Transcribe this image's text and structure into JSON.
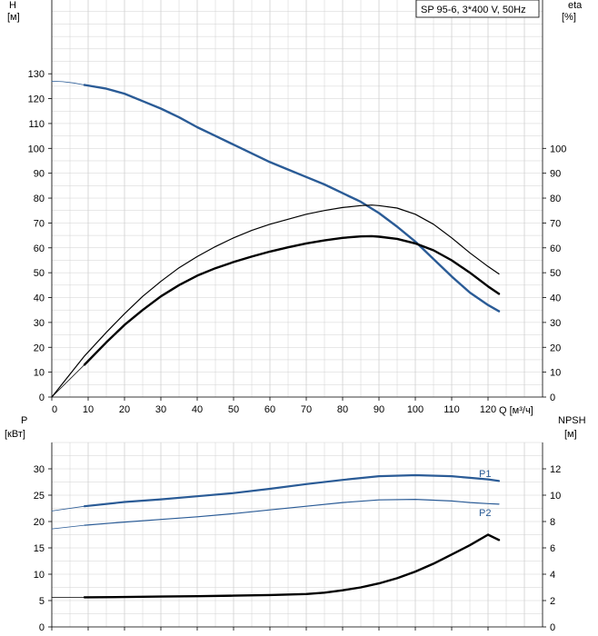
{
  "legend_box": "SP 95-6, 3*400 V, 50Hz",
  "chart_data": [
    {
      "type": "line",
      "name": "head-efficiency",
      "y_left_label": [
        "H",
        "[м]"
      ],
      "y_right_label": [
        "eta",
        "[%]"
      ],
      "x_label": "Q [м³/ч]",
      "x_ticks": [
        0,
        10,
        20,
        30,
        40,
        50,
        60,
        70,
        80,
        90,
        100,
        110,
        120
      ],
      "y_left_ticks": [
        0,
        10,
        20,
        30,
        40,
        50,
        60,
        70,
        80,
        90,
        100,
        110,
        120,
        130
      ],
      "y_right_ticks": [
        0,
        10,
        20,
        30,
        40,
        50,
        60,
        70,
        80,
        90,
        100
      ],
      "xlim": [
        0,
        130
      ],
      "ylim": [
        0,
        140
      ],
      "grid": true,
      "series": [
        {
          "name": "H",
          "color": "#2a5b96",
          "width": 2.4,
          "x": [
            9,
            15,
            20,
            25,
            30,
            35,
            40,
            45,
            50,
            55,
            60,
            65,
            70,
            75,
            80,
            85,
            90,
            95,
            100,
            105,
            110,
            115,
            120,
            123
          ],
          "y": [
            125.5,
            124,
            122,
            119,
            116,
            112.5,
            108.5,
            105,
            101.5,
            98,
            94.5,
            91.5,
            88.5,
            85.5,
            82,
            78.5,
            74,
            68.5,
            62.5,
            55.5,
            48.5,
            42,
            37,
            34.5
          ]
        },
        {
          "name": "H-extension",
          "color": "#2a5b96",
          "width": 0.8,
          "x": [
            0,
            3,
            6,
            9
          ],
          "y": [
            127,
            126.8,
            126.3,
            125.5
          ]
        },
        {
          "name": "eta",
          "color": "#000000",
          "width": 1.2,
          "x": [
            0,
            9,
            15,
            20,
            25,
            30,
            35,
            40,
            45,
            50,
            55,
            60,
            65,
            70,
            75,
            80,
            85,
            88,
            90,
            95,
            100,
            105,
            110,
            115,
            120,
            123
          ],
          "y": [
            0,
            16.5,
            26,
            33.5,
            40.5,
            46.5,
            52,
            56.5,
            60.5,
            64,
            67,
            69.5,
            71.5,
            73.5,
            75,
            76.2,
            77,
            77.2,
            77,
            76,
            73.5,
            69.5,
            64,
            58,
            52.5,
            49.5
          ]
        },
        {
          "name": "eta-unit",
          "color": "#000000",
          "width": 2.4,
          "x": [
            9,
            15,
            20,
            25,
            30,
            35,
            40,
            45,
            50,
            55,
            60,
            65,
            70,
            75,
            80,
            85,
            88,
            90,
            95,
            100,
            105,
            110,
            115,
            120,
            123
          ],
          "y": [
            13,
            22,
            29,
            35,
            40.5,
            45,
            48.8,
            51.8,
            54.3,
            56.5,
            58.5,
            60.2,
            61.8,
            63,
            64,
            64.6,
            64.7,
            64.5,
            63.6,
            61.8,
            59,
            55,
            50,
            44.5,
            41.5
          ]
        },
        {
          "name": "eta-extension",
          "color": "#000000",
          "width": 0.8,
          "x": [
            0,
            9
          ],
          "y": [
            0,
            13
          ]
        }
      ]
    },
    {
      "type": "line",
      "name": "power-npsh",
      "y_left_label": [
        "P",
        "[кВт]"
      ],
      "y_right_label": [
        "NPSH",
        "[м]"
      ],
      "y_left_ticks": [
        0,
        5,
        10,
        15,
        20,
        25,
        30
      ],
      "y_right_ticks": [
        0,
        2,
        4,
        6,
        8,
        10,
        12
      ],
      "xlim": [
        0,
        130
      ],
      "ylim": [
        0,
        35
      ],
      "grid": true,
      "annotations": [
        "P1",
        "P2"
      ],
      "series": [
        {
          "name": "P1",
          "color": "#2a5b96",
          "width": 2.2,
          "x": [
            9,
            20,
            30,
            40,
            50,
            60,
            70,
            80,
            90,
            100,
            110,
            115,
            120,
            123
          ],
          "y": [
            22.9,
            23.7,
            24.2,
            24.8,
            25.4,
            26.2,
            27.1,
            27.9,
            28.6,
            28.8,
            28.6,
            28.3,
            28,
            27.7
          ]
        },
        {
          "name": "P1-extension",
          "color": "#2a5b96",
          "width": 0.8,
          "x": [
            0,
            9
          ],
          "y": [
            22,
            22.9
          ]
        },
        {
          "name": "P2",
          "color": "#2a5b96",
          "width": 1.2,
          "x": [
            9,
            20,
            30,
            40,
            50,
            60,
            70,
            80,
            90,
            100,
            110,
            115,
            120,
            123
          ],
          "y": [
            19.3,
            19.9,
            20.4,
            20.9,
            21.5,
            22.2,
            22.9,
            23.6,
            24.1,
            24.2,
            23.9,
            23.6,
            23.4,
            23.3
          ]
        },
        {
          "name": "P2-extension",
          "color": "#2a5b96",
          "width": 0.8,
          "x": [
            0,
            9
          ],
          "y": [
            18.6,
            19.3
          ]
        },
        {
          "name": "NPSH",
          "color": "#000000",
          "width": 2.4,
          "axis": "right",
          "x": [
            9,
            20,
            30,
            40,
            50,
            60,
            70,
            75,
            80,
            85,
            90,
            95,
            100,
            105,
            110,
            115,
            120,
            123
          ],
          "y_npsh": [
            2.25,
            2.27,
            2.3,
            2.33,
            2.37,
            2.42,
            2.5,
            2.6,
            2.78,
            3.0,
            3.3,
            3.7,
            4.2,
            4.8,
            5.5,
            6.2,
            7.0,
            6.6
          ],
          "y_npsh_note": "NPSH values in m (right axis)"
        },
        {
          "name": "NPSH-extension",
          "color": "#000000",
          "width": 0.8,
          "axis": "right",
          "x": [
            0,
            9
          ],
          "y_npsh": [
            2.25,
            2.25
          ]
        }
      ]
    }
  ]
}
